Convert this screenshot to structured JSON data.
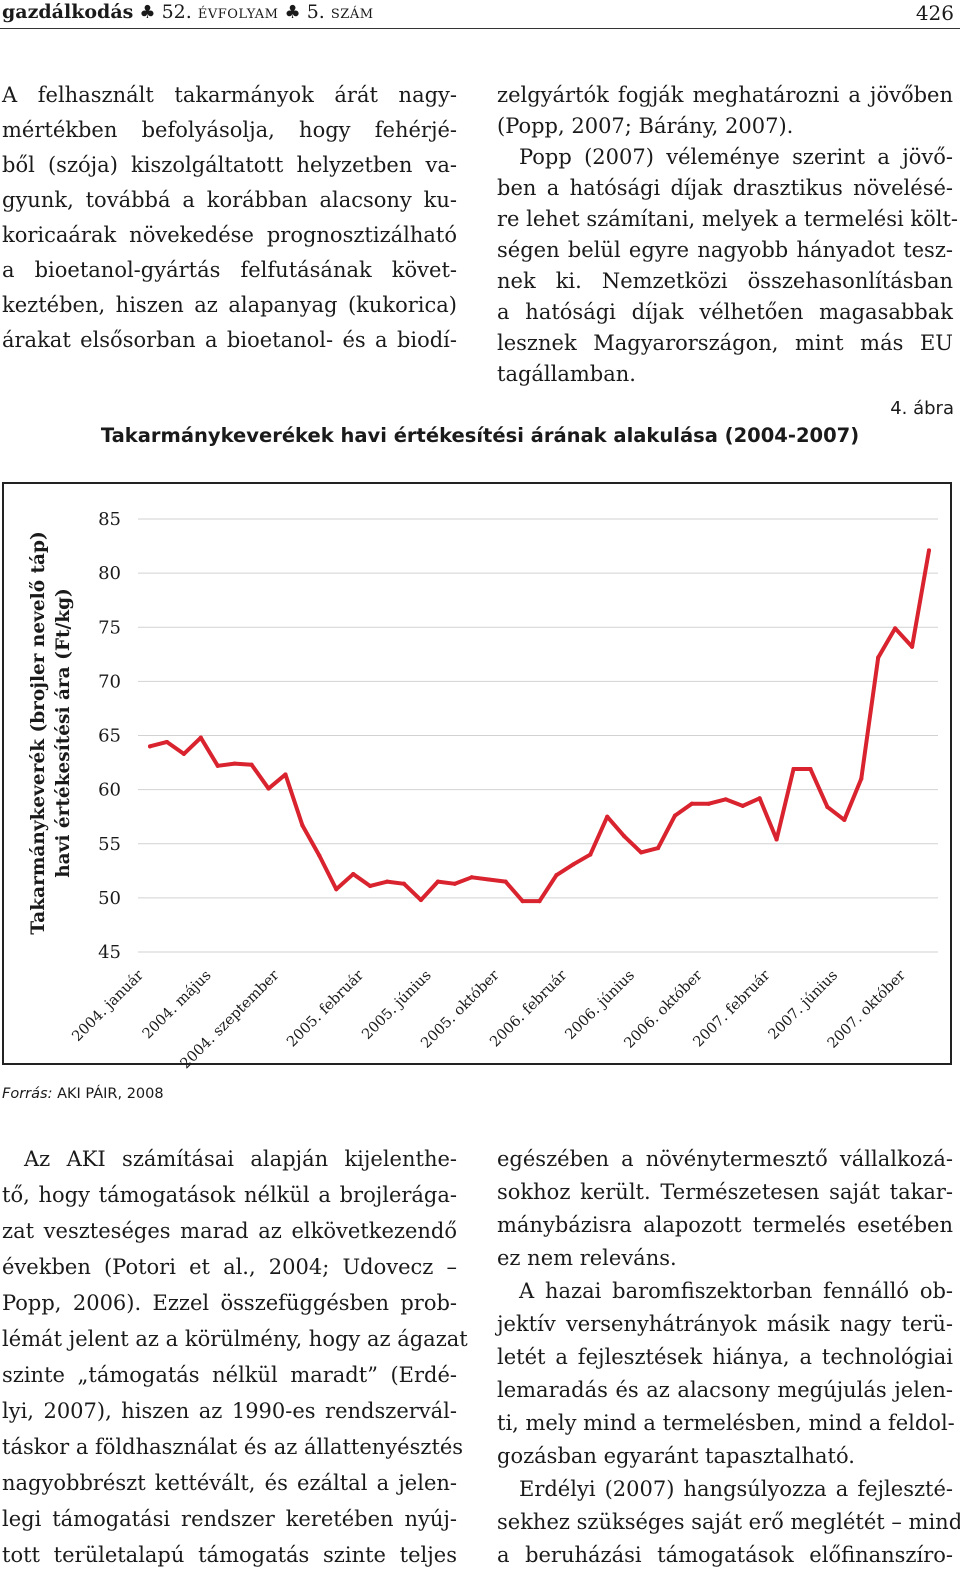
{
  "running_head": {
    "journal": "gazdálkodás",
    "club": "♣",
    "volume_number": "52.",
    "volume_word": "ÉVFOLYAM",
    "issue_number": "5.",
    "issue_word": "SZÁM",
    "page_number": "426"
  },
  "top_left_column": [
    "A felhasznált takarmányok árát nagy-",
    "mértékben befolyásolja, hogy fehérjé-",
    "ből (szója) kiszolgáltatott helyzetben va-",
    "gyunk, továbbá a korábban alacsony ku-",
    "koricaárak növekedése prognosztizálható",
    "a bioetanol-gyártás felfutásának követ-",
    "keztében, hiszen az alapanyag (kukorica)",
    "árakat elsősorban a bioetanol- és a biodí-"
  ],
  "top_right_column": [
    "zelgyártók fogják meghatározni a jövőben",
    "(Popp, 2007; Bárány, 2007).",
    "Popp (2007) véleménye szerint a jövő-",
    "ben a hatósági díjak drasztikus növelésé-",
    "re lehet számítani, melyek a termelési költ-",
    "ségen belül egyre nagyobb hányadot tesz-",
    "nek ki. Nemzetközi összehasonlításban",
    "a hatósági díjak vélhetően magasabbak",
    "lesznek Magyarországon, mint más EU",
    "tagállamban."
  ],
  "figure": {
    "label": "4. ábra",
    "title": "Takarmánykeverékek havi értékesítési árának alakulása (2004-2007)",
    "source_prefix": "Forrás:",
    "source_text": "AKI PÁIR, 2008"
  },
  "chart_data": {
    "type": "line",
    "title": "Takarmánykeverékek havi értékesítési árának alakulása (2004-2007)",
    "ylabel_line1": "Takarmánykeverék (brojler nevelő táp)",
    "ylabel_line2": "havi értékesítési ára (Ft/kg)",
    "xlabel": "",
    "ylim": [
      45,
      85
    ],
    "yticks": [
      "85",
      "80",
      "75",
      "70",
      "65",
      "60",
      "55",
      "50",
      "45"
    ],
    "grid": true,
    "legend": "none",
    "line_color": "#d9232e",
    "x_tick_labels": [
      "2004. január",
      "2004. május",
      "2004. szeptember",
      "2005. február",
      "2005. június",
      "2005. október",
      "2006. február",
      "2006. június",
      "2006. október",
      "2007. február",
      "2007. június",
      "2007. október"
    ],
    "x_tick_months": [
      0,
      4,
      8,
      13,
      17,
      21,
      25,
      29,
      33,
      37,
      41,
      45
    ],
    "series": [
      {
        "values": [
          64.0,
          64.4,
          63.3,
          64.8,
          62.2,
          62.4,
          62.3,
          60.1,
          61.4,
          56.7,
          53.9,
          50.8,
          52.2,
          51.1,
          51.5,
          51.3,
          49.8,
          51.5,
          51.3,
          51.9,
          51.7,
          51.5,
          49.7,
          49.7,
          52.1,
          53.1,
          54.0,
          57.5,
          55.7,
          54.2,
          54.6,
          57.6,
          58.7,
          58.7,
          59.1,
          58.5,
          59.2,
          55.4,
          61.9,
          61.9,
          58.4,
          57.2,
          61.0,
          72.2,
          74.9,
          73.2,
          82.1
        ]
      }
    ]
  },
  "bottom_left_column": [
    "Az AKI számításai alapján kijelenthe-",
    "tő, hogy támogatások nélkül a brojlerága-",
    "zat veszteséges marad az elkövetkezendő",
    "években (Potori et al., 2004; Udovecz –",
    "Popp, 2006). Ezzel összefüggésben prob-",
    "lémát jelent az a körülmény, hogy az ágazat",
    "szinte „támogatás nélkül maradt” (Erdé-",
    "lyi, 2007), hiszen az 1990-es rendszervál-",
    "táskor a földhasználat és az állattenyésztés",
    "nagyobbrészt kettévált, és ezáltal a jelen-",
    "legi támogatási rendszer keretében nyúj-",
    "tott területalapú támogatás szinte teljes"
  ],
  "bottom_right_column": [
    "egészében a növénytermesztő vállalkozá-",
    "sokhoz került. Természetesen saját takar-",
    "mánybázisra alapozott termelés esetében",
    "ez nem releváns.",
    "A hazai baromfiszektorban fennálló ob-",
    "jektív versenyhátrányok másik nagy terü-",
    "letét a fejlesztések hiánya, a technológiai",
    "lemaradás és az alacsony megújulás jelen-",
    "ti, mely mind a termelésben, mind a feldol-",
    "gozásban egyaránt tapasztalható.",
    "Erdélyi (2007) hangsúlyozza a fejleszté-",
    "sekhez szükséges saját erő meglétét – mind",
    "a beruházási támogatások előfinanszíro-"
  ]
}
